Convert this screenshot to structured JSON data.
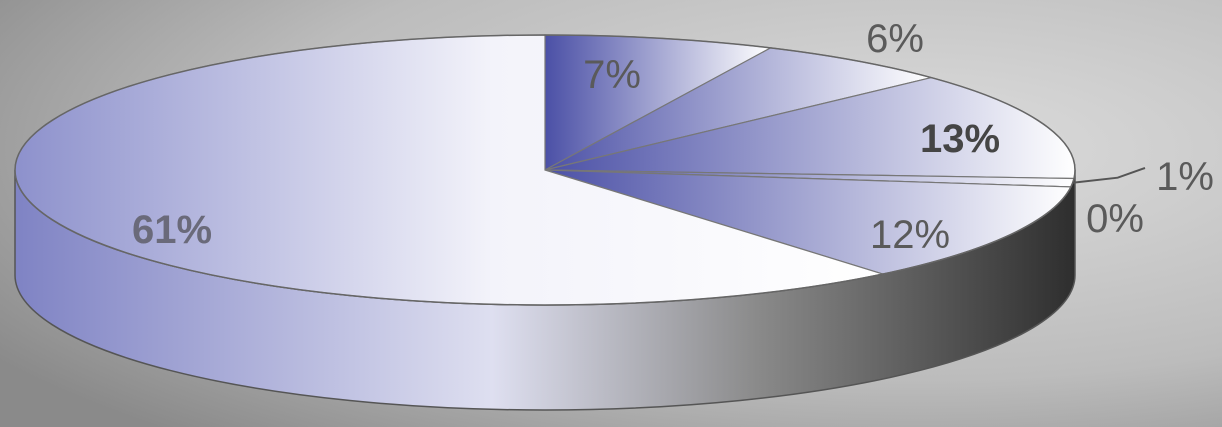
{
  "chart_data": {
    "type": "pie",
    "style": "3d",
    "title": "",
    "slices": [
      {
        "label": "7%",
        "value": 7,
        "color": "#5a5fb0"
      },
      {
        "label": "6%",
        "value": 6,
        "color": "#5a5fb0"
      },
      {
        "label": "13%",
        "value": 13,
        "color": "#4a50a8"
      },
      {
        "label": "1%",
        "value": 1,
        "color": "#6c70b8"
      },
      {
        "label": "0%",
        "value": 0,
        "color": "#6c70b8"
      },
      {
        "label": "12%",
        "value": 12,
        "color": "#5a5fb0"
      },
      {
        "label": "61%",
        "value": 61,
        "color": "#7e82c4"
      }
    ]
  }
}
